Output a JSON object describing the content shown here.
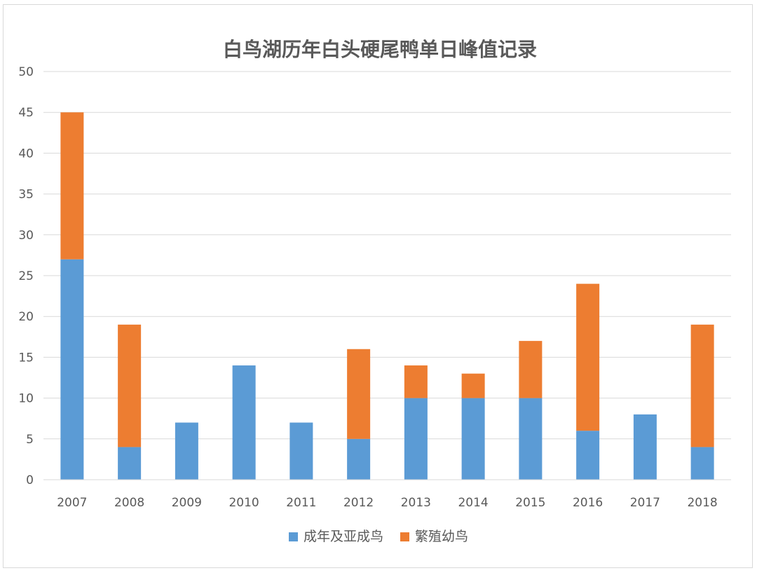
{
  "chart_data": {
    "type": "bar",
    "stacked": true,
    "title": "白鸟湖历年白头硬尾鸭单日峰值记录",
    "xlabel": "",
    "ylabel": "",
    "ylim": [
      0,
      50
    ],
    "yticks": [
      "0",
      "5",
      "10",
      "15",
      "20",
      "25",
      "30",
      "35",
      "40",
      "45",
      "50"
    ],
    "grid": true,
    "legend_position": "bottom",
    "categories": [
      "2007",
      "2008",
      "2009",
      "2010",
      "2011",
      "2012",
      "2013",
      "2014",
      "2015",
      "2016",
      "2017",
      "2018"
    ],
    "series": [
      {
        "name": "成年及亚成鸟",
        "color": "#5b9bd5",
        "values": [
          27,
          4,
          7,
          14,
          7,
          5,
          10,
          10,
          10,
          6,
          8,
          4
        ]
      },
      {
        "name": "繁殖幼鸟",
        "color": "#ed7d31",
        "values": [
          18,
          15,
          0,
          0,
          0,
          11,
          4,
          3,
          7,
          18,
          0,
          15
        ]
      }
    ]
  }
}
